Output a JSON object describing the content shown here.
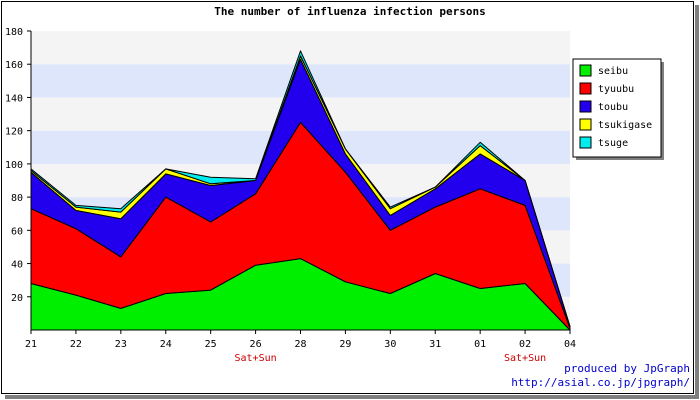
{
  "colors": {
    "seibu": "#00ee00",
    "tyuubu": "#ff0000",
    "toubu": "#2200ee",
    "tsukigase": "#ffff00",
    "tsuge": "#00eeee",
    "band_light": "#f4f4f4",
    "band_blue": "#dde6fb",
    "weekend_label": "#cc0000",
    "credit": "#0000cc"
  },
  "credit": {
    "line1": "produced by JpGraph",
    "line2": "http://asial.co.jp/jpgraph/"
  },
  "chart_data": {
    "type": "area",
    "stacked": true,
    "title": "The number of influenza infection persons",
    "xlabel": "",
    "ylabel": "",
    "ylim": [
      0,
      180
    ],
    "yticks": [
      20,
      40,
      60,
      80,
      100,
      120,
      140,
      160,
      180
    ],
    "grid": "horizontal alternating bands",
    "legend_position": "right",
    "categories": [
      "21",
      "22",
      "23",
      "24",
      "25",
      "26",
      "28",
      "29",
      "30",
      "31",
      "01",
      "02",
      "04"
    ],
    "annotations": [
      {
        "category": "26",
        "text": "Sat+Sun"
      },
      {
        "category": "02",
        "text": "Sat+Sun"
      }
    ],
    "series": [
      {
        "name": "seibu",
        "values": [
          28,
          21,
          13,
          22,
          24,
          39,
          43,
          29,
          22,
          34,
          25,
          28,
          0
        ]
      },
      {
        "name": "tyuubu",
        "values": [
          45,
          40,
          31,
          58,
          41,
          43,
          82,
          66,
          38,
          40,
          60,
          47,
          1
        ]
      },
      {
        "name": "toubu",
        "values": [
          22,
          11,
          23,
          14,
          22,
          8,
          38,
          11,
          9,
          11,
          21,
          15,
          1
        ]
      },
      {
        "name": "tsukigase",
        "values": [
          1,
          2,
          4,
          3,
          1,
          0,
          2,
          3,
          4,
          1,
          5,
          0,
          0
        ]
      },
      {
        "name": "tsuge",
        "values": [
          1,
          1,
          2,
          0,
          4,
          1,
          3,
          0,
          1,
          0,
          2,
          0,
          0
        ]
      }
    ]
  }
}
